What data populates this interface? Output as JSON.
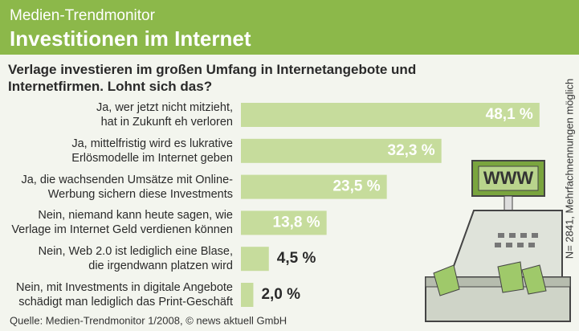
{
  "chart_data": {
    "type": "bar",
    "orientation": "horizontal",
    "supertitle": "Medien-Trendmonitor",
    "title": "Investitionen im Internet",
    "question": "Verlage investieren im großen Umfang in Internetangebote und\nInternetfirmen. Lohnt sich das?",
    "categories": [
      "Ja, wer jetzt nicht mitzieht,\nhat in Zukunft eh verloren",
      "Ja, mittelfristig wird es lukrative\nErlösmodelle im Internet geben",
      "Ja, die wachsenden Umsätze mit Online-\nWerbung sichern diese Investments",
      "Nein, niemand kann heute sagen, wie\nVerlage im Internet Geld verdienen können",
      "Nein, Web 2.0 ist lediglich eine Blase,\ndie irgendwann platzen wird",
      "Nein, mit Investments in digitale Angebote\nschädigt man lediglich das Print-Geschäft"
    ],
    "values": [
      48.1,
      32.3,
      23.5,
      13.8,
      4.5,
      2.0
    ],
    "value_labels": [
      "48,1 %",
      "32,3 %",
      "23,5 %",
      "13,8 %",
      "4,5 %",
      "2,0 %"
    ],
    "color": "#c6dc9c",
    "note": "N= 2841, Mehrfachnennungen möglich",
    "source": "Quelle: Medien-Trendmonitor 1/2008, © news aktuell GmbH",
    "illustration_text": "WWW"
  }
}
